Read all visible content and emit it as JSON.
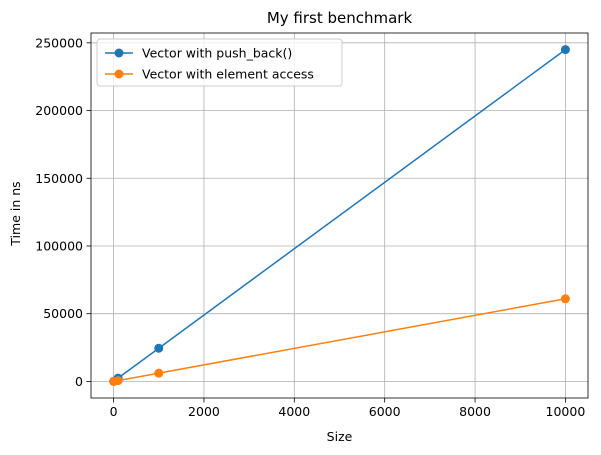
{
  "chart_data": {
    "type": "line",
    "title": "My first benchmark",
    "xlabel": "Size",
    "ylabel": "Time in ns",
    "xlim": [
      -500,
      10500
    ],
    "ylim": [
      -12250,
      257250
    ],
    "xticks": [
      0,
      2000,
      4000,
      6000,
      8000,
      10000
    ],
    "xtick_labels": [
      "0",
      "2000",
      "4000",
      "6000",
      "8000",
      "10000"
    ],
    "yticks": [
      0,
      50000,
      100000,
      150000,
      200000,
      250000
    ],
    "ytick_labels": [
      "0",
      "50000",
      "100000",
      "150000",
      "200000",
      "250000"
    ],
    "grid": true,
    "legend_position": "upper-left",
    "series": [
      {
        "name": "Vector with push_back()",
        "color": "#1f77b4",
        "marker": "circle",
        "x": [
          1,
          10,
          100,
          1000,
          10000
        ],
        "y": [
          30,
          250,
          2450,
          24500,
          245000
        ]
      },
      {
        "name": "Vector with element access",
        "color": "#ff7f0e",
        "marker": "circle",
        "x": [
          1,
          10,
          100,
          1000,
          10000
        ],
        "y": [
          10,
          60,
          600,
          6100,
          61000
        ]
      }
    ]
  }
}
